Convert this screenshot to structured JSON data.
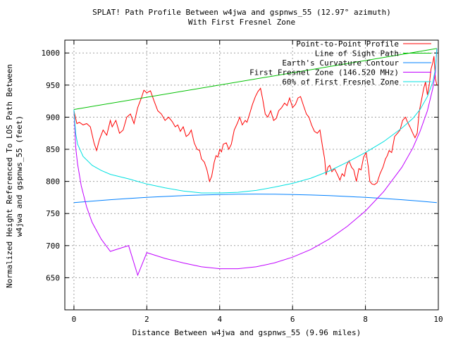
{
  "chart_data": {
    "type": "line",
    "title": "SPLAT! Path Profile Between w4jwa and gspnws_55 (12.97° azimuth)",
    "subtitle": "With First Fresnel Zone",
    "xlabel": "Distance Between w4jwa and gspnws_55 (9.96 miles)",
    "ylabel_line1": "Normalized Height Referenced To LOS Path Between",
    "ylabel_line2": "w4jwa and gspnws_55 (feet)",
    "xlim": [
      -0.25,
      10
    ],
    "ylim": [
      600,
      1020
    ],
    "xticks": [
      0,
      2,
      4,
      6,
      8,
      10
    ],
    "yticks": [
      650,
      700,
      750,
      800,
      850,
      900,
      950,
      1000
    ],
    "grid": true,
    "legend_position": "top-right",
    "series": [
      {
        "name": "Point-to-Point Profile",
        "color": "#ff0000",
        "points": [
          [
            0.0,
            910
          ],
          [
            0.08,
            890
          ],
          [
            0.15,
            892
          ],
          [
            0.25,
            888
          ],
          [
            0.35,
            890
          ],
          [
            0.45,
            885
          ],
          [
            0.55,
            860
          ],
          [
            0.62,
            848
          ],
          [
            0.7,
            865
          ],
          [
            0.8,
            880
          ],
          [
            0.9,
            872
          ],
          [
            1.0,
            895
          ],
          [
            1.05,
            885
          ],
          [
            1.15,
            895
          ],
          [
            1.25,
            875
          ],
          [
            1.35,
            880
          ],
          [
            1.45,
            900
          ],
          [
            1.55,
            905
          ],
          [
            1.65,
            890
          ],
          [
            1.75,
            915
          ],
          [
            1.85,
            930
          ],
          [
            1.92,
            942
          ],
          [
            2.0,
            938
          ],
          [
            2.1,
            941
          ],
          [
            2.2,
            925
          ],
          [
            2.3,
            910
          ],
          [
            2.4,
            905
          ],
          [
            2.5,
            895
          ],
          [
            2.6,
            900
          ],
          [
            2.7,
            893
          ],
          [
            2.78,
            885
          ],
          [
            2.85,
            888
          ],
          [
            2.92,
            878
          ],
          [
            3.0,
            885
          ],
          [
            3.08,
            870
          ],
          [
            3.15,
            873
          ],
          [
            3.22,
            880
          ],
          [
            3.3,
            860
          ],
          [
            3.38,
            850
          ],
          [
            3.45,
            848
          ],
          [
            3.5,
            835
          ],
          [
            3.58,
            830
          ],
          [
            3.65,
            818
          ],
          [
            3.72,
            800
          ],
          [
            3.78,
            808
          ],
          [
            3.85,
            830
          ],
          [
            3.9,
            840
          ],
          [
            3.95,
            838
          ],
          [
            4.0,
            850
          ],
          [
            4.05,
            846
          ],
          [
            4.1,
            858
          ],
          [
            4.18,
            860
          ],
          [
            4.25,
            850
          ],
          [
            4.32,
            858
          ],
          [
            4.4,
            880
          ],
          [
            4.48,
            890
          ],
          [
            4.55,
            900
          ],
          [
            4.62,
            888
          ],
          [
            4.7,
            895
          ],
          [
            4.75,
            892
          ],
          [
            4.82,
            905
          ],
          [
            4.9,
            920
          ],
          [
            4.98,
            932
          ],
          [
            5.05,
            940
          ],
          [
            5.12,
            945
          ],
          [
            5.18,
            928
          ],
          [
            5.25,
            905
          ],
          [
            5.32,
            900
          ],
          [
            5.4,
            910
          ],
          [
            5.48,
            895
          ],
          [
            5.55,
            898
          ],
          [
            5.62,
            910
          ],
          [
            5.7,
            915
          ],
          [
            5.78,
            922
          ],
          [
            5.85,
            918
          ],
          [
            5.92,
            930
          ],
          [
            6.0,
            915
          ],
          [
            6.08,
            920
          ],
          [
            6.15,
            930
          ],
          [
            6.22,
            932
          ],
          [
            6.3,
            918
          ],
          [
            6.38,
            905
          ],
          [
            6.45,
            900
          ],
          [
            6.52,
            888
          ],
          [
            6.6,
            878
          ],
          [
            6.68,
            875
          ],
          [
            6.75,
            880
          ],
          [
            6.82,
            855
          ],
          [
            6.88,
            835
          ],
          [
            6.92,
            810
          ],
          [
            6.97,
            822
          ],
          [
            7.02,
            825
          ],
          [
            7.08,
            815
          ],
          [
            7.15,
            820
          ],
          [
            7.22,
            812
          ],
          [
            7.3,
            802
          ],
          [
            7.36,
            812
          ],
          [
            7.42,
            808
          ],
          [
            7.48,
            825
          ],
          [
            7.55,
            832
          ],
          [
            7.62,
            822
          ],
          [
            7.68,
            818
          ],
          [
            7.75,
            800
          ],
          [
            7.82,
            820
          ],
          [
            7.88,
            818
          ],
          [
            7.95,
            838
          ],
          [
            8.02,
            845
          ],
          [
            8.08,
            822
          ],
          [
            8.12,
            800
          ],
          [
            8.18,
            796
          ],
          [
            8.25,
            795
          ],
          [
            8.32,
            798
          ],
          [
            8.4,
            812
          ],
          [
            8.48,
            822
          ],
          [
            8.55,
            835
          ],
          [
            8.6,
            840
          ],
          [
            8.65,
            848
          ],
          [
            8.72,
            845
          ],
          [
            8.8,
            870
          ],
          [
            8.88,
            875
          ],
          [
            8.95,
            880
          ],
          [
            9.02,
            895
          ],
          [
            9.1,
            900
          ],
          [
            9.15,
            893
          ],
          [
            9.22,
            885
          ],
          [
            9.3,
            875
          ],
          [
            9.36,
            868
          ],
          [
            9.42,
            875
          ],
          [
            9.48,
            910
          ],
          [
            9.55,
            930
          ],
          [
            9.6,
            945
          ],
          [
            9.65,
            955
          ],
          [
            9.7,
            935
          ],
          [
            9.75,
            950
          ],
          [
            9.8,
            975
          ],
          [
            9.85,
            985
          ],
          [
            9.88,
            995
          ],
          [
            9.92,
            960
          ],
          [
            9.96,
            950
          ]
        ]
      },
      {
        "name": "Line of Sight Path",
        "color": "#00c000",
        "points": [
          [
            0.0,
            912
          ],
          [
            9.96,
            1007
          ]
        ]
      },
      {
        "name": "Earth's Curvature Contour",
        "color": "#0080ff",
        "points": [
          [
            0.0,
            767
          ],
          [
            0.5,
            769.3
          ],
          [
            1.0,
            771.5
          ],
          [
            1.5,
            773.4
          ],
          [
            2.0,
            775.1
          ],
          [
            2.5,
            776.6
          ],
          [
            3.0,
            777.9
          ],
          [
            3.5,
            778.9
          ],
          [
            4.0,
            779.6
          ],
          [
            4.5,
            780.1
          ],
          [
            5.0,
            780.3
          ],
          [
            5.5,
            780.1
          ],
          [
            6.0,
            779.6
          ],
          [
            6.5,
            778.9
          ],
          [
            7.0,
            777.9
          ],
          [
            7.5,
            776.6
          ],
          [
            8.0,
            775.1
          ],
          [
            8.5,
            773.4
          ],
          [
            9.0,
            771.5
          ],
          [
            9.5,
            769.3
          ],
          [
            9.96,
            767
          ]
        ]
      },
      {
        "name": "First Fresnel Zone (146.520 MHz)",
        "color": "#c000ff",
        "points": [
          [
            0.0,
            912
          ],
          [
            0.05,
            852
          ],
          [
            0.1,
            827
          ],
          [
            0.2,
            793
          ],
          [
            0.35,
            760
          ],
          [
            0.5,
            736
          ],
          [
            0.75,
            710
          ],
          [
            1.0,
            691
          ],
          [
            1.5,
            700
          ],
          [
            1.75,
            654
          ],
          [
            2.0,
            689
          ],
          [
            2.5,
            680
          ],
          [
            3.0,
            673
          ],
          [
            3.5,
            667
          ],
          [
            4.0,
            664
          ],
          [
            4.5,
            664
          ],
          [
            5.0,
            667
          ],
          [
            5.5,
            673
          ],
          [
            6.0,
            682
          ],
          [
            6.5,
            694
          ],
          [
            7.0,
            710
          ],
          [
            7.5,
            730
          ],
          [
            8.0,
            754
          ],
          [
            8.5,
            784
          ],
          [
            9.0,
            822
          ],
          [
            9.3,
            852
          ],
          [
            9.5,
            878
          ],
          [
            9.7,
            910
          ],
          [
            9.85,
            945
          ],
          [
            9.92,
            970
          ],
          [
            9.96,
            1007
          ]
        ]
      },
      {
        "name": "60% of First Fresnel Zone",
        "color": "#00e0e0",
        "points": [
          [
            0.0,
            912
          ],
          [
            0.05,
            874
          ],
          [
            0.1,
            858
          ],
          [
            0.25,
            839
          ],
          [
            0.5,
            825
          ],
          [
            0.75,
            817
          ],
          [
            1.0,
            811
          ],
          [
            1.5,
            804
          ],
          [
            2.0,
            796
          ],
          [
            2.5,
            790
          ],
          [
            3.0,
            785
          ],
          [
            3.5,
            782
          ],
          [
            4.0,
            782
          ],
          [
            4.5,
            783
          ],
          [
            5.0,
            786
          ],
          [
            5.5,
            791
          ],
          [
            6.0,
            797
          ],
          [
            6.5,
            805
          ],
          [
            7.0,
            816
          ],
          [
            7.5,
            830
          ],
          [
            8.0,
            845
          ],
          [
            8.5,
            862
          ],
          [
            9.0,
            883
          ],
          [
            9.3,
            898
          ],
          [
            9.5,
            912
          ],
          [
            9.7,
            932
          ],
          [
            9.85,
            955
          ],
          [
            9.92,
            975
          ],
          [
            9.96,
            1007
          ]
        ]
      }
    ]
  }
}
